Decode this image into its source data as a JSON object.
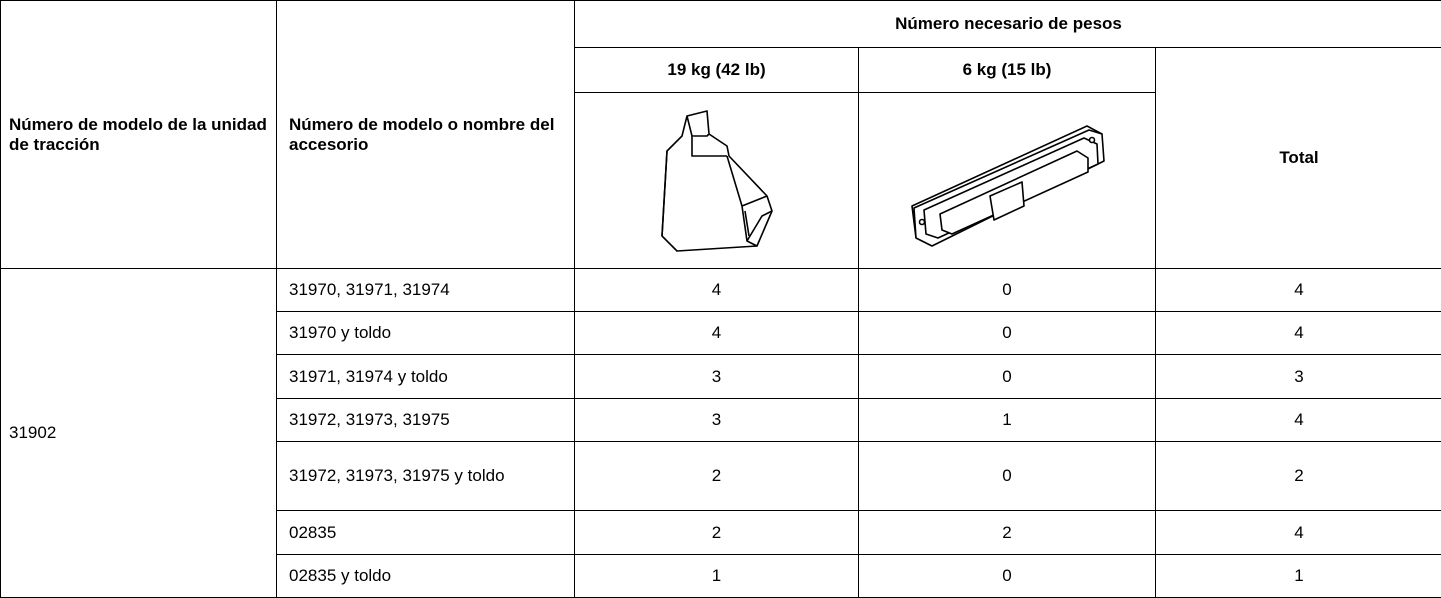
{
  "table": {
    "header": {
      "tractor_model": "Número de modelo de la unidad de tracción",
      "accessory_model": "Número de modelo o nombre del accesorio",
      "weights_required": "Número necesario de pesos",
      "weight_19": "19 kg (42 lb)",
      "weight_6": "6 kg (15 lb)",
      "total": "Total"
    },
    "tractor_model": "31902",
    "rows": [
      [
        "31970, 31971, 31974",
        4,
        0,
        4
      ],
      [
        "31970 y toldo",
        4,
        0,
        4
      ],
      [
        "31971, 31974 y toldo",
        3,
        0,
        3
      ],
      [
        "31972, 31973, 31975",
        3,
        1,
        4
      ],
      [
        "31972, 31973, 31975 y toldo",
        2,
        0,
        2
      ],
      [
        "02835",
        2,
        2,
        4
      ],
      [
        "02835 y toldo",
        1,
        0,
        1
      ]
    ]
  }
}
